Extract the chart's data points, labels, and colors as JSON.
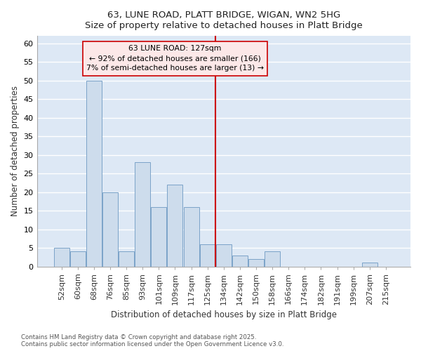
{
  "title_line1": "63, LUNE ROAD, PLATT BRIDGE, WIGAN, WN2 5HG",
  "title_line2": "Size of property relative to detached houses in Platt Bridge",
  "xlabel": "Distribution of detached houses by size in Platt Bridge",
  "ylabel": "Number of detached properties",
  "categories": [
    "52sqm",
    "60sqm",
    "68sqm",
    "76sqm",
    "85sqm",
    "93sqm",
    "101sqm",
    "109sqm",
    "117sqm",
    "125sqm",
    "134sqm",
    "142sqm",
    "150sqm",
    "158sqm",
    "166sqm",
    "174sqm",
    "182sqm",
    "191sqm",
    "199sqm",
    "207sqm",
    "215sqm"
  ],
  "values": [
    5,
    4,
    50,
    20,
    4,
    28,
    16,
    22,
    16,
    6,
    6,
    3,
    2,
    4,
    0,
    0,
    0,
    0,
    0,
    1,
    0
  ],
  "bar_color": "#cddcec",
  "bar_edge_color": "#7ba3c8",
  "plot_bg_color": "#dde8f5",
  "fig_bg_color": "#ffffff",
  "grid_color": "#ffffff",
  "annotation_text": "63 LUNE ROAD: 127sqm\n← 92% of detached houses are smaller (166)\n7% of semi-detached houses are larger (13) →",
  "vline_x_index": 9.5,
  "vline_color": "#cc0000",
  "annotation_box_facecolor": "#fce8e8",
  "annotation_box_edgecolor": "#cc0000",
  "ylim": [
    0,
    62
  ],
  "yticks": [
    0,
    5,
    10,
    15,
    20,
    25,
    30,
    35,
    40,
    45,
    50,
    55,
    60
  ],
  "footnote": "Contains HM Land Registry data © Crown copyright and database right 2025.\nContains public sector information licensed under the Open Government Licence v3.0."
}
